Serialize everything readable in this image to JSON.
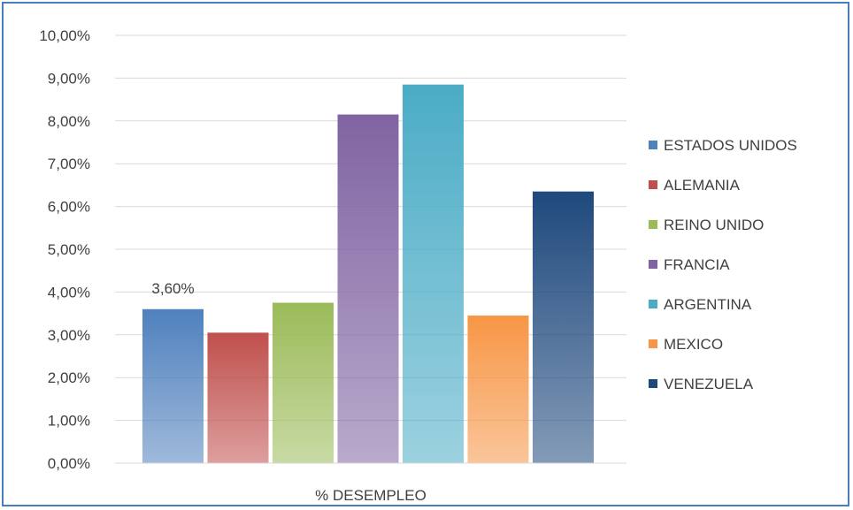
{
  "chart_data": {
    "type": "bar",
    "title": "",
    "xlabel": "",
    "ylabel": "",
    "categories": [
      "% DESEMPLEO"
    ],
    "ylim": [
      0,
      10
    ],
    "yticks": [
      "0,00%",
      "1,00%",
      "2,00%",
      "3,00%",
      "4,00%",
      "5,00%",
      "6,00%",
      "7,00%",
      "8,00%",
      "9,00%",
      "10,00%"
    ],
    "grid": true,
    "legend_position": "right",
    "series": [
      {
        "name": "ESTADOS UNIDOS",
        "values": [
          3.6
        ],
        "color": "#4f81bd",
        "data_label": "3,60%"
      },
      {
        "name": "ALEMANIA",
        "values": [
          3.05
        ],
        "color": "#c0504d"
      },
      {
        "name": "REINO UNIDO",
        "values": [
          3.75
        ],
        "color": "#9bbb59"
      },
      {
        "name": "FRANCIA",
        "values": [
          8.15
        ],
        "color": "#8064a2"
      },
      {
        "name": "ARGENTINA",
        "values": [
          8.85
        ],
        "color": "#4bacc6"
      },
      {
        "name": "MEXICO",
        "values": [
          3.45
        ],
        "color": "#f79646"
      },
      {
        "name": "VENEZUELA",
        "values": [
          6.35
        ],
        "color": "#1f497d"
      }
    ]
  }
}
